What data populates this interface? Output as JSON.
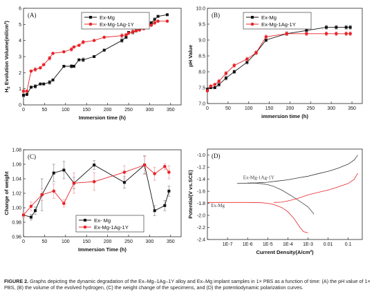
{
  "figure": {
    "caption_label": "FIGURE 2.",
    "caption_text": "Graphs depicting the dynamic degradation of the Ex–Mg–1Ag–1Y alloy and Ex–Mg implant samples in 1× PBS as a function of time: (A) the pH value of 1× PBS, (B) the volume of the evolved hydrogen, (C) the weight change of the specimens, and (D) the potentiodynamic polarization curves."
  },
  "colors": {
    "exmg": "#111111",
    "exmgag": "#e8242a",
    "exmg_bar": "#7a7a7a",
    "exmgag_bar": "#e8898c"
  },
  "chart_data": [
    {
      "panel": "(A)",
      "type": "line",
      "xlabel": "Immersion time (h)",
      "ylabel": "H2 Evolution Volume(ml/cm²)",
      "xlim": [
        0,
        375
      ],
      "ylim": [
        0,
        6
      ],
      "xticks": [
        0,
        50,
        100,
        150,
        200,
        250,
        300,
        350
      ],
      "yticks": [
        0,
        1,
        2,
        3,
        4,
        5,
        6
      ],
      "legend": "top-left",
      "series": [
        {
          "name": "Ex-Mg",
          "x": [
            0,
            8,
            18,
            28,
            40,
            48,
            62,
            70,
            96,
            114,
            120,
            132,
            142,
            168,
            192,
            234,
            244,
            250,
            260,
            268,
            276,
            286,
            294,
            304,
            312,
            320,
            342
          ],
          "y": [
            0.6,
            0.65,
            1.1,
            1.15,
            1.3,
            1.3,
            1.4,
            1.55,
            2.4,
            2.4,
            2.4,
            2.8,
            2.8,
            3.0,
            3.4,
            4.0,
            4.2,
            4.5,
            4.5,
            4.6,
            4.7,
            4.8,
            4.9,
            5.1,
            5.3,
            5.5,
            5.6
          ]
        },
        {
          "name": "Ex-Mg-1Ag-1Y",
          "x": [
            0,
            8,
            18,
            28,
            40,
            48,
            62,
            70,
            96,
            114,
            120,
            132,
            142,
            168,
            192,
            234,
            244,
            250,
            260,
            268,
            276,
            286,
            294,
            304,
            312,
            320,
            342
          ],
          "y": [
            0.85,
            0.85,
            2.1,
            2.2,
            2.3,
            2.5,
            2.9,
            3.2,
            3.3,
            3.45,
            3.6,
            3.7,
            3.9,
            4.0,
            4.2,
            4.3,
            4.35,
            4.45,
            4.55,
            4.6,
            4.65,
            4.75,
            4.85,
            4.95,
            5.1,
            5.2,
            5.2
          ]
        }
      ]
    },
    {
      "panel": "(B)",
      "type": "line",
      "xlabel": "immersion time (h)",
      "ylabel": "pH Value",
      "xlim": [
        0,
        375
      ],
      "ylim": [
        7.0,
        10.0
      ],
      "xticks": [
        0,
        50,
        100,
        150,
        200,
        250,
        300,
        350
      ],
      "yticks": [
        7.0,
        7.5,
        8.0,
        8.5,
        9.0,
        9.5,
        10.0
      ],
      "legend": "top-left",
      "series": [
        {
          "name": "Ex-Mg",
          "x": [
            0,
            8,
            18,
            28,
            45,
            65,
            96,
            118,
            142,
            192,
            240,
            288,
            312,
            336,
            346
          ],
          "y": [
            7.45,
            7.5,
            7.5,
            7.6,
            7.8,
            8.0,
            8.3,
            8.6,
            9.0,
            9.2,
            9.3,
            9.4,
            9.4,
            9.4,
            9.4
          ]
        },
        {
          "name": "Ex-Mg-1Ag-1Y",
          "x": [
            0,
            8,
            18,
            28,
            45,
            65,
            96,
            118,
            142,
            192,
            240,
            288,
            312,
            336,
            346
          ],
          "y": [
            7.4,
            7.55,
            7.6,
            7.7,
            7.95,
            8.2,
            8.4,
            8.6,
            9.1,
            9.2,
            9.2,
            9.2,
            9.2,
            9.2,
            9.2
          ]
        }
      ]
    },
    {
      "panel": "(C)",
      "type": "line",
      "xlabel": "Immersion Time (h)",
      "ylabel": "Change of weight",
      "xlim": [
        0,
        375
      ],
      "ylim": [
        0.96,
        1.08
      ],
      "xticks": [
        0,
        50,
        100,
        150,
        200,
        250,
        300,
        350
      ],
      "yticks": [
        0.96,
        0.98,
        1.0,
        1.02,
        1.04,
        1.06,
        1.08
      ],
      "legend": "bottom-right",
      "series": [
        {
          "name": "Ex- Mg",
          "x": [
            0,
            18,
            28,
            44,
            72,
            96,
            120,
            168,
            240,
            288,
            312,
            336,
            346
          ],
          "y": [
            0.99,
            0.987,
            0.996,
            1.018,
            1.048,
            1.052,
            1.034,
            1.059,
            1.035,
            1.059,
            0.996,
            1.003,
            1.023
          ],
          "err": [
            0.004,
            0.004,
            0.005,
            0.022,
            0.012,
            0.012,
            0.008,
            0.006,
            0.008,
            0.012,
            0.007,
            0.007,
            0.007
          ]
        },
        {
          "name": "Ex-Mg-1Ag-1Y",
          "x": [
            0,
            18,
            44,
            72,
            96,
            120,
            168,
            240,
            288,
            312,
            336,
            346
          ],
          "y": [
            0.99,
            1.002,
            1.018,
            1.023,
            1.006,
            1.034,
            1.036,
            1.049,
            1.059,
            1.047,
            1.057,
            1.049
          ],
          "err": [
            0.004,
            0.006,
            0.008,
            0.01,
            0.005,
            0.014,
            0.012,
            0.009,
            0.013,
            0.009,
            0.004,
            0.009
          ]
        }
      ]
    },
    {
      "panel": "(D)",
      "type": "line",
      "xlabel": "Current Density(A/cm²)",
      "ylabel": "Potential(V vs.SCE)",
      "xscale": "log",
      "xlim": [
        1e-08,
        0.5
      ],
      "ylim": [
        -2.4,
        -0.9
      ],
      "xticks": [
        "1E-7",
        "1E-6",
        "1E-5",
        "1E-4",
        "1E-3",
        "0.01",
        "0.1"
      ],
      "xtick_values": [
        1e-07,
        1e-06,
        1e-05,
        0.0001,
        0.001,
        0.01,
        0.1
      ],
      "yticks": [
        -2.4,
        -2.2,
        -2.0,
        -1.8,
        -1.6,
        -1.4,
        -1.2,
        -1.0
      ],
      "series": [
        {
          "name": "Ex-Mg-1Ag-1Y",
          "label": "Ex-Mg-1Ag-1Y",
          "x": [
            3e-07,
            1e-06,
            2e-06,
            5e-06,
            1e-05,
            2e-05,
            5e-05,
            0.0001,
            0.0002,
            0.0005,
            0.001,
            0.002,
            1e-06,
            3e-06,
            1e-05,
            3e-05,
            0.0001,
            0.0003,
            0.001,
            0.003,
            0.01,
            0.03,
            0.1,
            0.2,
            0.3
          ],
          "y": [
            -1.47,
            -1.465,
            -1.463,
            -1.475,
            -1.49,
            -1.52,
            -1.58,
            -1.64,
            -1.7,
            -1.79,
            -1.86,
            -1.98,
            -1.465,
            -1.46,
            -1.45,
            -1.43,
            -1.41,
            -1.38,
            -1.35,
            -1.31,
            -1.27,
            -1.22,
            -1.15,
            -1.08,
            -1.0
          ]
        },
        {
          "name": "Ex-Mg",
          "label": "Ex-Mg",
          "x": [
            1e-08,
            1e-07,
            1e-06,
            5e-06,
            1e-05,
            2e-05,
            5e-05,
            0.0001,
            0.0002,
            0.0004,
            0.0006,
            0.001,
            2e-05,
            5e-05,
            0.0001,
            0.0003,
            0.001,
            0.003,
            0.01,
            0.03,
            0.1,
            0.2,
            0.3
          ],
          "y": [
            -1.785,
            -1.785,
            -1.785,
            -1.79,
            -1.8,
            -1.82,
            -1.87,
            -1.94,
            -2.05,
            -2.2,
            -2.27,
            -2.29,
            -1.785,
            -1.78,
            -1.76,
            -1.72,
            -1.66,
            -1.62,
            -1.58,
            -1.53,
            -1.47,
            -1.4,
            -1.3
          ]
        }
      ]
    }
  ]
}
